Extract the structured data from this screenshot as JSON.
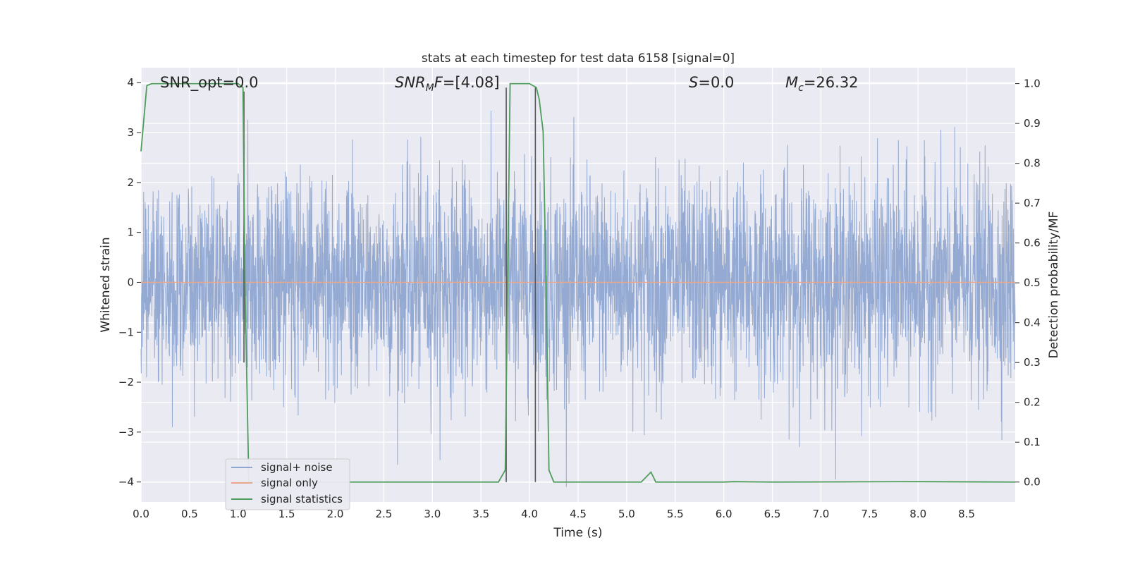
{
  "chart_data": {
    "type": "line",
    "title": "stats at each timestep for test data 6158 [signal=0]",
    "xlabel": "Time (s)",
    "ylabel_left": "Whitened strain",
    "ylabel_right": "Detection probability/MF",
    "xlim": [
      0.0,
      9.0
    ],
    "ylim_left": [
      -4.4,
      4.3
    ],
    "ylim_right": [
      -0.05,
      1.04
    ],
    "xticks": [
      "0.0",
      "0.5",
      "1.0",
      "1.5",
      "2.0",
      "2.5",
      "3.0",
      "3.5",
      "4.0",
      "4.5",
      "5.0",
      "5.5",
      "6.0",
      "6.5",
      "7.0",
      "7.5",
      "8.0",
      "8.5"
    ],
    "yticks_left": [
      "4",
      "3",
      "2",
      "1",
      "0",
      "−1",
      "−2",
      "−3",
      "−4"
    ],
    "yticks_right": [
      "1.0",
      "0.9",
      "0.8",
      "0.7",
      "0.6",
      "0.5",
      "0.4",
      "0.3",
      "0.2",
      "0.1",
      "0.0"
    ],
    "grid": true,
    "legend_position": "lower-left",
    "annotations": {
      "snr_opt": "SNR_opt=0.0",
      "snr_mf": "=[4.08]",
      "snr_mf_main": "SNR",
      "snr_mf_sub": "M",
      "snr_mf_after": "F",
      "s_main": "S",
      "s_value": "=0.0",
      "mc_main": "M",
      "mc_sub": "c",
      "mc_value": "=26.32"
    },
    "series": [
      {
        "name": "signal+ noise",
        "color": "#8fa6d0",
        "description_axis": "left",
        "envelope_upper": 2.6,
        "envelope_lower": -2.4,
        "peak_max": 3.95,
        "peak_min": -4.1
      },
      {
        "name": "signal only",
        "color": "#e9a68a",
        "axis": "left",
        "values_constant": 0.0
      },
      {
        "name": "signal statistics",
        "color": "#4f9d5b",
        "axis": "right",
        "x": [
          0.0,
          0.06,
          0.11,
          0.2,
          0.5,
          1.0,
          1.05,
          1.07,
          1.11,
          1.2,
          1.5,
          2.0,
          3.0,
          3.5,
          3.68,
          3.75,
          3.8,
          3.85,
          4.0,
          4.07,
          4.1,
          4.14,
          4.17,
          4.2,
          4.25,
          4.3,
          4.5,
          5.0,
          5.15,
          5.25,
          5.3,
          5.35,
          6.0,
          6.1,
          6.5,
          8.0,
          9.0
        ],
        "y": [
          0.83,
          0.995,
          1.0,
          1.0,
          1.0,
          1.0,
          0.99,
          0.5,
          0.0,
          0.0,
          0.0,
          0.0,
          0.0,
          0.0,
          0.0,
          0.03,
          1.0,
          1.0,
          1.0,
          0.99,
          0.96,
          0.88,
          0.5,
          0.03,
          0.0,
          0.0,
          0.0,
          0.0,
          0.0,
          0.025,
          0.0,
          0.0,
          0.0,
          0.001,
          0.0,
          0.001,
          0.0
        ]
      }
    ],
    "vertical_markers": [
      {
        "x": 1.06,
        "y_top": 0.98,
        "y_bottom": 0.3,
        "color": "#555555"
      },
      {
        "x": 3.76,
        "y_top": 0.99,
        "y_bottom": 0.0,
        "color": "#555555"
      },
      {
        "x": 4.06,
        "y_top": 0.99,
        "y_bottom": 0.0,
        "color": "#555555"
      }
    ]
  }
}
